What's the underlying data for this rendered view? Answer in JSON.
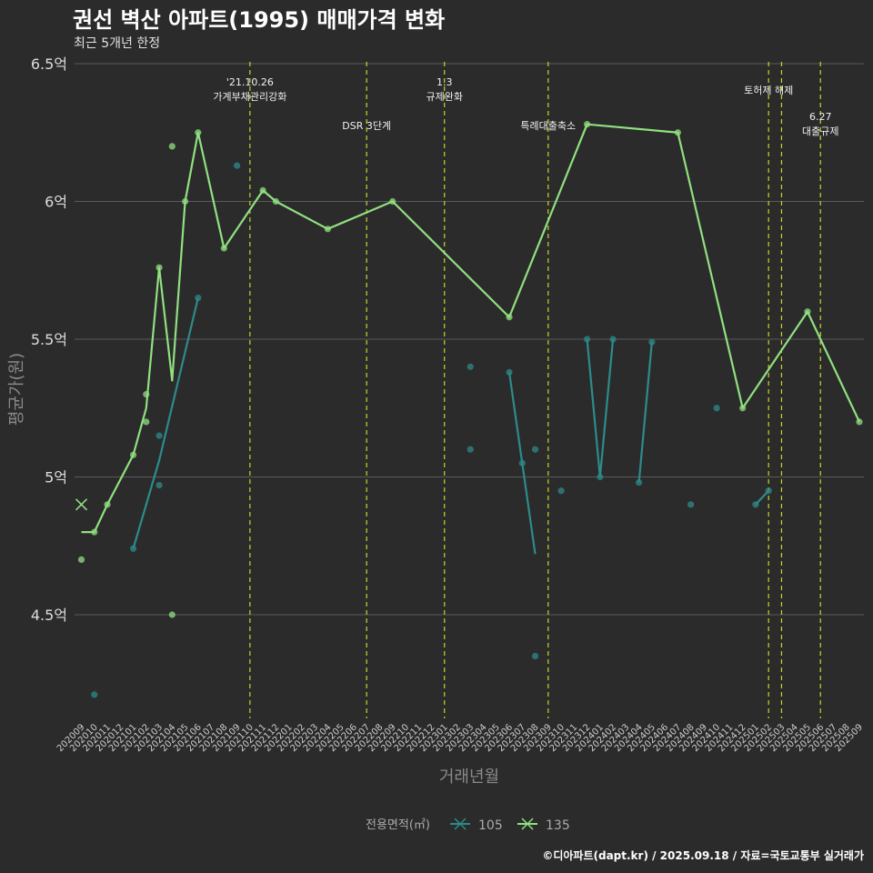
{
  "title": "권선 벽산 아파트(1995) 매매가격 변화",
  "subtitle": "최근 5개년 한정",
  "caption": "©디아파트(dapt.kr) / 2025.09.18 / 자료=국토교통부 실거래가",
  "colors": {
    "background": "#2b2b2b",
    "grid": "#5a5a5a",
    "series_105": "#2e8b8b",
    "series_135": "#90e080",
    "vline": "#c8d42a"
  },
  "chart_data": {
    "type": "line",
    "title": "권선 벽산 아파트(1995) 매매가격 변화",
    "subtitle": "최근 5개년 한정",
    "xlabel": "거래년월",
    "ylabel": "평균가(원)",
    "ylim": [
      4.1,
      6.5
    ],
    "yticks": [
      {
        "value": 4.5,
        "label": "4.5억"
      },
      {
        "value": 5.0,
        "label": "5억"
      },
      {
        "value": 5.5,
        "label": "5.5억"
      },
      {
        "value": 6.0,
        "label": "6억"
      },
      {
        "value": 6.5,
        "label": "6.5억"
      }
    ],
    "months": [
      "202009",
      "202010",
      "202011",
      "202012",
      "202101",
      "202102",
      "202103",
      "202104",
      "202105",
      "202106",
      "202107",
      "202108",
      "202109",
      "202110",
      "202111",
      "202112",
      "202201",
      "202202",
      "202203",
      "202204",
      "202205",
      "202206",
      "202207",
      "202208",
      "202209",
      "202210",
      "202211",
      "202212",
      "202301",
      "202302",
      "202303",
      "202304",
      "202305",
      "202306",
      "202307",
      "202308",
      "202309",
      "202310",
      "202311",
      "202312",
      "202401",
      "202402",
      "202403",
      "202404",
      "202405",
      "202406",
      "202407",
      "202408",
      "202409",
      "202410",
      "202411",
      "202412",
      "202501",
      "202502",
      "202503",
      "202504",
      "202505",
      "202506",
      "202507",
      "202508",
      "202509"
    ],
    "legend_title": "전용면적(㎡)",
    "series": [
      {
        "name": "105",
        "color": "#2e8b8b",
        "line": [
          {
            "x": "202101",
            "y": 4.74
          },
          {
            "x": "202103",
            "y": 5.06
          },
          {
            "x": "202106",
            "y": 5.65
          }
        ],
        "line2": [
          {
            "x": "202306",
            "y": 5.38
          },
          {
            "x": "202307",
            "y": 5.05
          },
          {
            "x": "202308",
            "y": 4.72
          }
        ],
        "line3": [
          {
            "x": "202312",
            "y": 5.5
          },
          {
            "x": "202401",
            "y": 5.0
          },
          {
            "x": "202402",
            "y": 5.5
          }
        ],
        "line4": [
          {
            "x": "202404",
            "y": 4.98
          },
          {
            "x": "202405",
            "y": 5.49
          }
        ],
        "line5": [
          {
            "x": "202501",
            "y": 4.9
          },
          {
            "x": "202502",
            "y": 4.95
          }
        ],
        "points": [
          {
            "x": "202010",
            "y": 4.21
          },
          {
            "x": "202101",
            "y": 4.74
          },
          {
            "x": "202103",
            "y": 5.15
          },
          {
            "x": "202103",
            "y": 4.97
          },
          {
            "x": "202106",
            "y": 5.65
          },
          {
            "x": "202109",
            "y": 6.13
          },
          {
            "x": "202303",
            "y": 5.4
          },
          {
            "x": "202303",
            "y": 5.1
          },
          {
            "x": "202306",
            "y": 5.38
          },
          {
            "x": "202307",
            "y": 5.05
          },
          {
            "x": "202308",
            "y": 5.1
          },
          {
            "x": "202308",
            "y": 4.35
          },
          {
            "x": "202310",
            "y": 4.95
          },
          {
            "x": "202312",
            "y": 5.5
          },
          {
            "x": "202401",
            "y": 5.0
          },
          {
            "x": "202402",
            "y": 5.5
          },
          {
            "x": "202404",
            "y": 4.98
          },
          {
            "x": "202405",
            "y": 5.49
          },
          {
            "x": "202408",
            "y": 4.9
          },
          {
            "x": "202410",
            "y": 5.25
          },
          {
            "x": "202501",
            "y": 4.9
          },
          {
            "x": "202502",
            "y": 4.95
          }
        ]
      },
      {
        "name": "135",
        "color": "#90e080",
        "line": [
          {
            "x": "202009",
            "y": 4.8
          },
          {
            "x": "202010",
            "y": 4.8
          },
          {
            "x": "202011",
            "y": 4.9
          },
          {
            "x": "202101",
            "y": 5.08
          },
          {
            "x": "202102",
            "y": 5.25
          },
          {
            "x": "202103",
            "y": 5.76
          },
          {
            "x": "202104",
            "y": 5.35
          },
          {
            "x": "202105",
            "y": 6.0
          },
          {
            "x": "202106",
            "y": 6.25
          },
          {
            "x": "202108",
            "y": 5.83
          },
          {
            "x": "202111",
            "y": 6.04
          },
          {
            "x": "202112",
            "y": 6.0
          },
          {
            "x": "202204",
            "y": 5.9
          },
          {
            "x": "202209",
            "y": 6.0
          },
          {
            "x": "202306",
            "y": 5.58
          },
          {
            "x": "202312",
            "y": 6.28
          },
          {
            "x": "202407",
            "y": 6.25
          },
          {
            "x": "202412",
            "y": 5.25
          },
          {
            "x": "202505",
            "y": 5.6
          },
          {
            "x": "202509",
            "y": 5.2
          }
        ],
        "points": [
          {
            "x": "202009",
            "y": 4.7
          },
          {
            "x": "202010",
            "y": 4.8
          },
          {
            "x": "202011",
            "y": 4.9
          },
          {
            "x": "202101",
            "y": 5.08
          },
          {
            "x": "202102",
            "y": 5.3
          },
          {
            "x": "202102",
            "y": 5.2
          },
          {
            "x": "202103",
            "y": 5.76
          },
          {
            "x": "202104",
            "y": 6.2
          },
          {
            "x": "202104",
            "y": 4.5
          },
          {
            "x": "202105",
            "y": 6.0
          },
          {
            "x": "202106",
            "y": 6.25
          },
          {
            "x": "202108",
            "y": 5.83
          },
          {
            "x": "202111",
            "y": 6.04
          },
          {
            "x": "202112",
            "y": 6.0
          },
          {
            "x": "202204",
            "y": 5.9
          },
          {
            "x": "202209",
            "y": 6.0
          },
          {
            "x": "202306",
            "y": 5.58
          },
          {
            "x": "202312",
            "y": 6.28
          },
          {
            "x": "202407",
            "y": 6.25
          },
          {
            "x": "202412",
            "y": 5.25
          },
          {
            "x": "202505",
            "y": 5.6
          },
          {
            "x": "202509",
            "y": 5.2
          }
        ],
        "marker_x": {
          "x": "202009",
          "y": 4.9
        }
      }
    ],
    "annotations": [
      {
        "x": "202110",
        "label": "'21.10.26\n가계부채관리강화",
        "row": 1
      },
      {
        "x": "202207",
        "label": "DSR 3단계",
        "row": 2
      },
      {
        "x": "202301",
        "label": "1.3\n규제완화",
        "row": 1
      },
      {
        "x": "202309",
        "label": "특례대출축소",
        "row": 2
      },
      {
        "x": "202502",
        "label": "토허제 해제",
        "row": 1.3
      },
      {
        "x": "202503",
        "label": "",
        "row": 0
      },
      {
        "x": "202506",
        "label": "6.27\n대출규제",
        "row": 2.2
      }
    ]
  }
}
